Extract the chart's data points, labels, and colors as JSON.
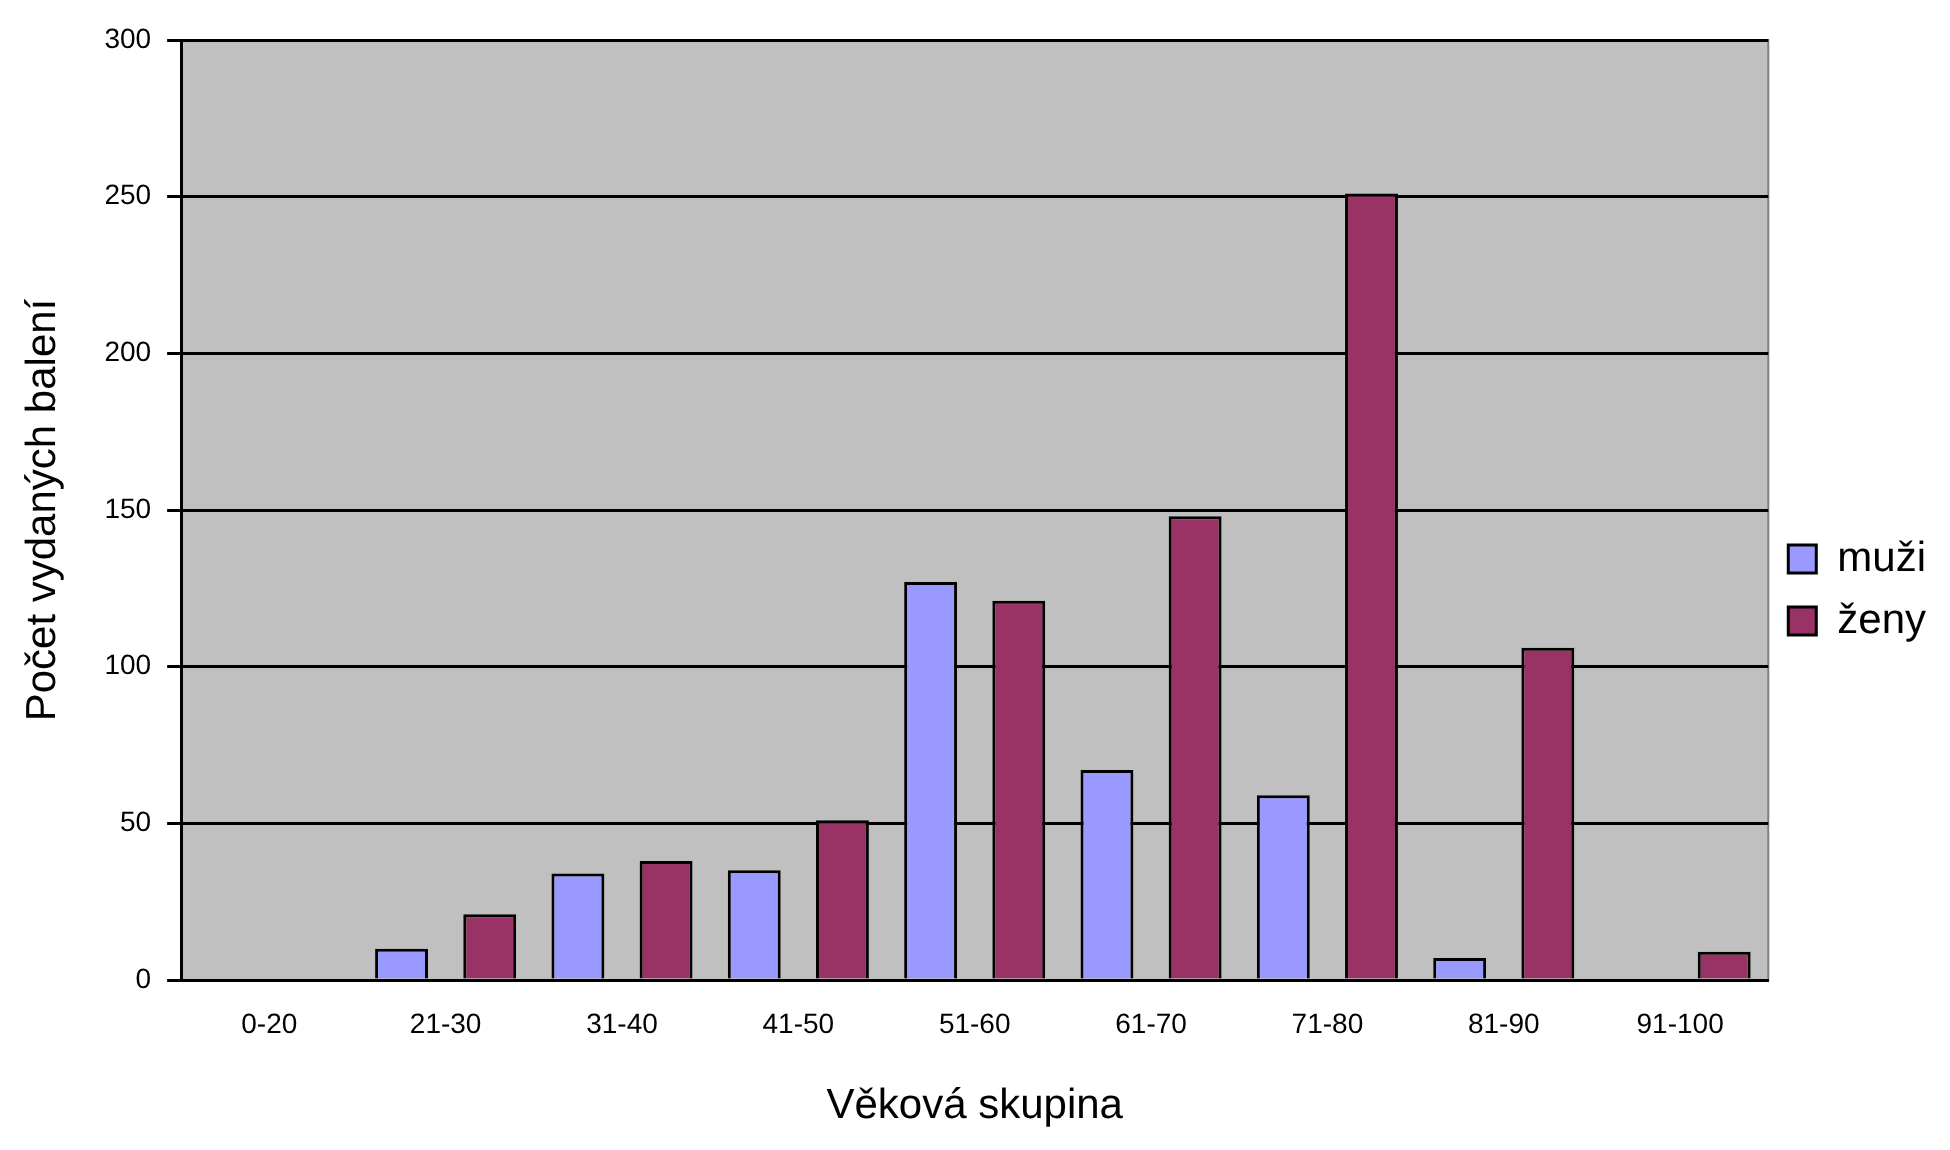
{
  "chart_data": {
    "type": "bar",
    "xlabel": "Věková skupina",
    "ylabel": "Počet vydaných balení",
    "categories": [
      "0-20",
      "21-30",
      "31-40",
      "41-50",
      "51-60",
      "61-70",
      "71-80",
      "81-90",
      "91-100"
    ],
    "series": [
      {
        "name": "muži",
        "color": "#9999ff",
        "values": [
          null,
          10,
          34,
          35,
          127,
          67,
          59,
          7,
          0
        ]
      },
      {
        "name": "ženy",
        "color": "#993366",
        "values": [
          null,
          21,
          38,
          51,
          121,
          148,
          251,
          106,
          9
        ]
      }
    ],
    "ylim": [
      0,
      300
    ],
    "yticks": [
      0,
      50,
      100,
      150,
      200,
      250,
      300
    ],
    "grid": "y",
    "legend": "right"
  }
}
